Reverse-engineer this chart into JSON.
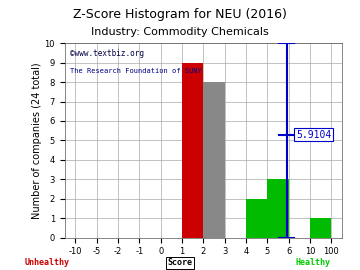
{
  "title": "Z-Score Histogram for NEU (2016)",
  "subtitle": "Industry: Commodity Chemicals",
  "watermark1": "©www.textbiz.org",
  "watermark2": "The Research Foundation of SUNY",
  "ylabel": "Number of companies (24 total)",
  "xlabel_center": "Score",
  "xlabel_left": "Unhealthy",
  "xlabel_right": "Healthy",
  "xtick_values": [
    -10,
    -5,
    -2,
    -1,
    0,
    1,
    2,
    3,
    4,
    5,
    6,
    10,
    100
  ],
  "xtick_labels": [
    "-10",
    "-5",
    "-2",
    "-1",
    "0",
    "1",
    "2",
    "3",
    "4",
    "5",
    "6",
    "10",
    "100"
  ],
  "bars": [
    {
      "x_left_val": 1,
      "x_right_val": 2,
      "height": 9,
      "color": "#cc0000"
    },
    {
      "x_left_val": 2,
      "x_right_val": 3,
      "height": 8,
      "color": "#888888"
    },
    {
      "x_left_val": 4,
      "x_right_val": 5,
      "height": 2,
      "color": "#00bb00"
    },
    {
      "x_left_val": 5,
      "x_right_val": 6,
      "height": 3,
      "color": "#00bb00"
    },
    {
      "x_left_val": 10,
      "x_right_val": 100,
      "height": 1,
      "color": "#00bb00"
    }
  ],
  "neu_zscore_val": 5.9104,
  "neu_zscore_label": "5.9104",
  "neu_line_color": "#0000cc",
  "ylim": [
    0,
    10
  ],
  "ytick_positions": [
    0,
    1,
    2,
    3,
    4,
    5,
    6,
    7,
    8,
    9,
    10
  ],
  "bg_color": "#ffffff",
  "grid_color": "#aaaaaa",
  "title_fontsize": 9,
  "subtitle_fontsize": 8,
  "ylabel_fontsize": 7,
  "tick_fontsize": 6,
  "annotation_fontsize": 7,
  "unhealthy_color": "#cc0000",
  "healthy_color": "#00cc00",
  "wm_color1": "#000044",
  "wm_color2": "#000088"
}
